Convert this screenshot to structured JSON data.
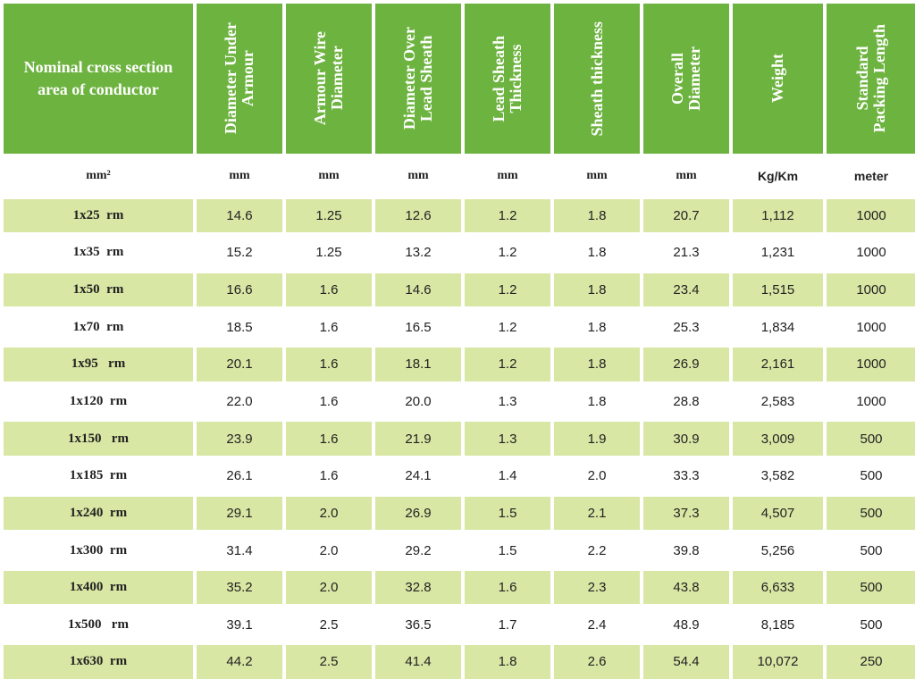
{
  "headers": [
    "Nominal cross section\narea of conductor",
    "Diameter Under\nArmour",
    "Armour Wire\nDiameter",
    "Diameter Over\nLead Sheath",
    "Lead Sheath\nThickness",
    "Sheath thickness",
    "Overall\nDiameter",
    "Weight",
    "Standard\nPacking Length"
  ],
  "units": [
    "mm²",
    "mm",
    "mm",
    "mm",
    "mm",
    "mm",
    "mm",
    "Kg/Km",
    "meter"
  ],
  "rows": [
    [
      "1x25  rm",
      "14.6",
      "1.25",
      "12.6",
      "1.2",
      "1.8",
      "20.7",
      "1,112",
      "1000"
    ],
    [
      "1x35  rm",
      "15.2",
      "1.25",
      "13.2",
      "1.2",
      "1.8",
      "21.3",
      "1,231",
      "1000"
    ],
    [
      "1x50  rm",
      "16.6",
      "1.6",
      "14.6",
      "1.2",
      "1.8",
      "23.4",
      "1,515",
      "1000"
    ],
    [
      "1x70  rm",
      "18.5",
      "1.6",
      "16.5",
      "1.2",
      "1.8",
      "25.3",
      "1,834",
      "1000"
    ],
    [
      "1x95   rm",
      "20.1",
      "1.6",
      "18.1",
      "1.2",
      "1.8",
      "26.9",
      "2,161",
      "1000"
    ],
    [
      "1x120  rm",
      "22.0",
      "1.6",
      "20.0",
      "1.3",
      "1.8",
      "28.8",
      "2,583",
      "1000"
    ],
    [
      "1x150   rm",
      "23.9",
      "1.6",
      "21.9",
      "1.3",
      "1.9",
      "30.9",
      "3,009",
      "500"
    ],
    [
      "1x185  rm",
      "26.1",
      "1.6",
      "24.1",
      "1.4",
      "2.0",
      "33.3",
      "3,582",
      "500"
    ],
    [
      "1x240  rm",
      "29.1",
      "2.0",
      "26.9",
      "1.5",
      "2.1",
      "37.3",
      "4,507",
      "500"
    ],
    [
      "1x300  rm",
      "31.4",
      "2.0",
      "29.2",
      "1.5",
      "2.2",
      "39.8",
      "5,256",
      "500"
    ],
    [
      "1x400  rm",
      "35.2",
      "2.0",
      "32.8",
      "1.6",
      "2.3",
      "43.8",
      "6,633",
      "500"
    ],
    [
      "1x500   rm",
      "39.1",
      "2.5",
      "36.5",
      "1.7",
      "2.4",
      "48.9",
      "8,185",
      "500"
    ],
    [
      "1x630  rm",
      "44.2",
      "2.5",
      "41.4",
      "1.8",
      "2.6",
      "54.4",
      "10,072",
      "250"
    ]
  ],
  "colors": {
    "header_green": "#6db33f",
    "stripe_green": "#d8e7a4"
  }
}
